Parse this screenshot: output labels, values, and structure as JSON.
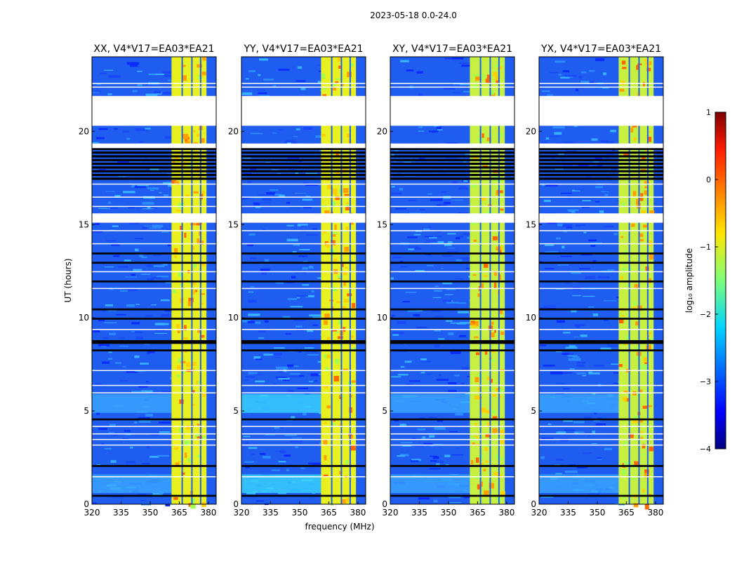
{
  "chart_data": {
    "type": "heatmap",
    "suptitle": "2023-05-18 0.0-24.0",
    "xlabel": "frequency (MHz)",
    "ylabel": "UT (hours)",
    "xlim": [
      320,
      384
    ],
    "ylim": [
      0,
      24
    ],
    "xticks": [
      320,
      335,
      350,
      365,
      380
    ],
    "yticks": [
      0,
      5,
      10,
      15,
      20
    ],
    "panels": [
      {
        "title": "XX, V4*V17=EA03*EA21"
      },
      {
        "title": "YY, V4*V17=EA03*EA21"
      },
      {
        "title": "XY, V4*V17=EA03*EA21"
      },
      {
        "title": "YX, V4*V17=EA03*EA21"
      }
    ],
    "rfi_band_mhz": [
      361,
      379
    ],
    "rfi_channel_edges_mhz": [
      361,
      366.5,
      371.5,
      376,
      379
    ],
    "blank_ut_ranges": [
      [
        20.3,
        21.9
      ],
      [
        15.1,
        15.6
      ],
      [
        19.1,
        19.35
      ]
    ],
    "flagged_black_ut_ranges": [
      [
        17.4,
        19.0
      ],
      [
        13.4,
        13.5
      ],
      [
        12.9,
        13.0
      ],
      [
        11.9,
        12.0
      ],
      [
        10.4,
        10.5
      ],
      [
        9.9,
        10.0
      ],
      [
        8.6,
        8.8
      ],
      [
        8.2,
        8.3
      ],
      [
        4.5,
        4.6
      ],
      [
        2.0,
        2.1
      ],
      [
        0.4,
        0.5
      ]
    ],
    "colorbar": {
      "label": "log₁₀ amplitude",
      "range": [
        -4,
        1
      ],
      "ticks": [
        "1",
        "0",
        "−1",
        "−2",
        "−3",
        "−4"
      ],
      "colormap": "jet"
    }
  }
}
